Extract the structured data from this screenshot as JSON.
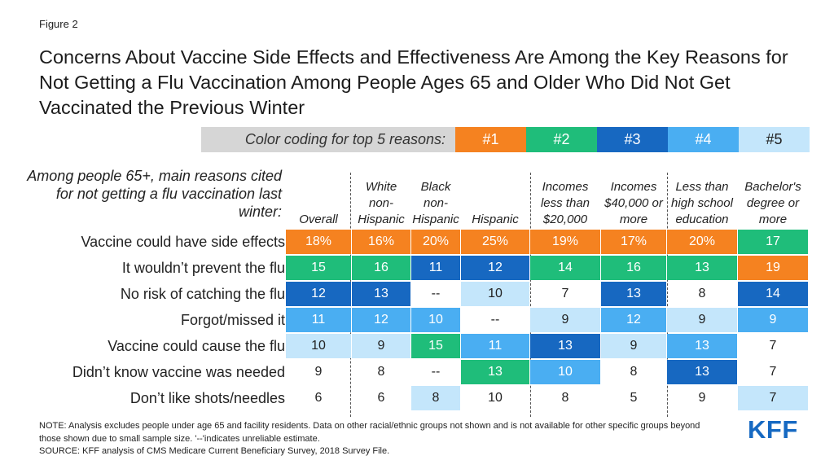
{
  "figure_label": "Figure 2",
  "title": "Concerns About Vaccine Side Effects and Effectiveness Are Among the Key Reasons for Not Getting a Flu Vaccination Among People Ages 65 and Older Who Did Not Get Vaccinated the Previous Winter",
  "legend": {
    "label": "Color coding for top 5 reasons:",
    "items": [
      {
        "rank": "#1",
        "color": "#f58220",
        "text_color": "#ffffff"
      },
      {
        "rank": "#2",
        "color": "#1fbd7a",
        "text_color": "#ffffff"
      },
      {
        "rank": "#3",
        "color": "#1768c1",
        "text_color": "#ffffff"
      },
      {
        "rank": "#4",
        "color": "#4aaef2",
        "text_color": "#ffffff"
      },
      {
        "rank": "#5",
        "color": "#c4e6fb",
        "text_color": "#222222"
      }
    ]
  },
  "question": "Among people 65+, main reasons cited for not getting a flu vaccination last winter:",
  "columns": [
    "Overall",
    "White non-Hispanic",
    "Black non-Hispanic",
    "Hispanic",
    "Incomes less than $20,000",
    "Incomes $40,000 or more",
    "Less than high school education",
    "Bachelor's degree or more"
  ],
  "chart_data": {
    "type": "table",
    "rows": [
      {
        "label": "Vaccine could have side effects",
        "values": [
          "18%",
          "16%",
          "20%",
          "25%",
          "19%",
          "17%",
          "20%",
          "17"
        ],
        "ranks": [
          1,
          1,
          1,
          1,
          1,
          1,
          1,
          2
        ]
      },
      {
        "label": "It wouldn’t prevent the flu",
        "values": [
          "15",
          "16",
          "11",
          "12",
          "14",
          "16",
          "13",
          "19"
        ],
        "ranks": [
          2,
          2,
          3,
          3,
          2,
          2,
          2,
          1
        ]
      },
      {
        "label": "No risk of catching the flu",
        "values": [
          "12",
          "13",
          "--",
          "10",
          "7",
          "13",
          "8",
          "14"
        ],
        "ranks": [
          3,
          3,
          0,
          5,
          0,
          3,
          0,
          3
        ]
      },
      {
        "label": "Forgot/missed it",
        "values": [
          "11",
          "12",
          "10",
          "--",
          "9",
          "12",
          "9",
          "9"
        ],
        "ranks": [
          4,
          4,
          4,
          0,
          5,
          4,
          5,
          4
        ]
      },
      {
        "label": "Vaccine could cause the flu",
        "values": [
          "10",
          "9",
          "15",
          "11",
          "13",
          "9",
          "13",
          "7"
        ],
        "ranks": [
          5,
          5,
          2,
          4,
          3,
          5,
          4,
          0
        ]
      },
      {
        "label": "Didn’t know vaccine was needed",
        "values": [
          "9",
          "8",
          "--",
          "13",
          "10",
          "8",
          "13",
          "7"
        ],
        "ranks": [
          0,
          0,
          0,
          2,
          4,
          0,
          3,
          0
        ]
      },
      {
        "label": "Don’t like shots/needles",
        "values": [
          "6",
          "6",
          "8",
          "10",
          "8",
          "5",
          "9",
          "7"
        ],
        "ranks": [
          0,
          0,
          5,
          0,
          0,
          0,
          0,
          5
        ]
      }
    ]
  },
  "note": "NOTE: Analysis excludes people under age 65 and facility residents. Data on other racial/ethnic groups not shown and is not available for other specific groups beyond those shown due to small sample size. '--'indicates unreliable estimate.",
  "source": "SOURCE: KFF analysis of CMS Medicare Current Beneficiary Survey, 2018 Survey File.",
  "logo_text": "KFF"
}
